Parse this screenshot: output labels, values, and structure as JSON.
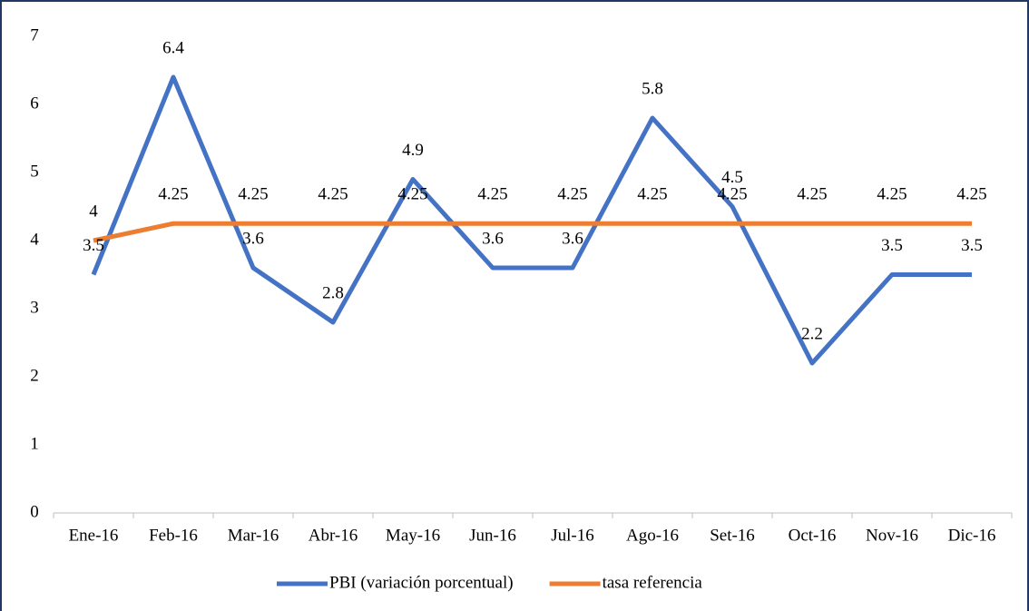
{
  "chart_data": {
    "type": "line",
    "categories": [
      "Ene-16",
      "Feb-16",
      "Mar-16",
      "Abr-16",
      "May-16",
      "Jun-16",
      "Jul-16",
      "Ago-16",
      "Set-16",
      "Oct-16",
      "Nov-16",
      "Dic-16"
    ],
    "series": [
      {
        "name": "PBI (variación porcentual)",
        "color": "#4472c4",
        "values": [
          3.5,
          6.4,
          3.6,
          2.8,
          4.9,
          3.6,
          3.6,
          5.8,
          4.5,
          2.2,
          3.5,
          3.5
        ]
      },
      {
        "name": "tasa referencia",
        "color": "#ed7d31",
        "values": [
          4,
          4.25,
          4.25,
          4.25,
          4.25,
          4.25,
          4.25,
          4.25,
          4.25,
          4.25,
          4.25,
          4.25
        ]
      }
    ],
    "ylim": [
      0,
      7
    ],
    "yticks": [
      0,
      1,
      2,
      3,
      4,
      5,
      6,
      7
    ],
    "grid": false,
    "legend": "bottom"
  }
}
